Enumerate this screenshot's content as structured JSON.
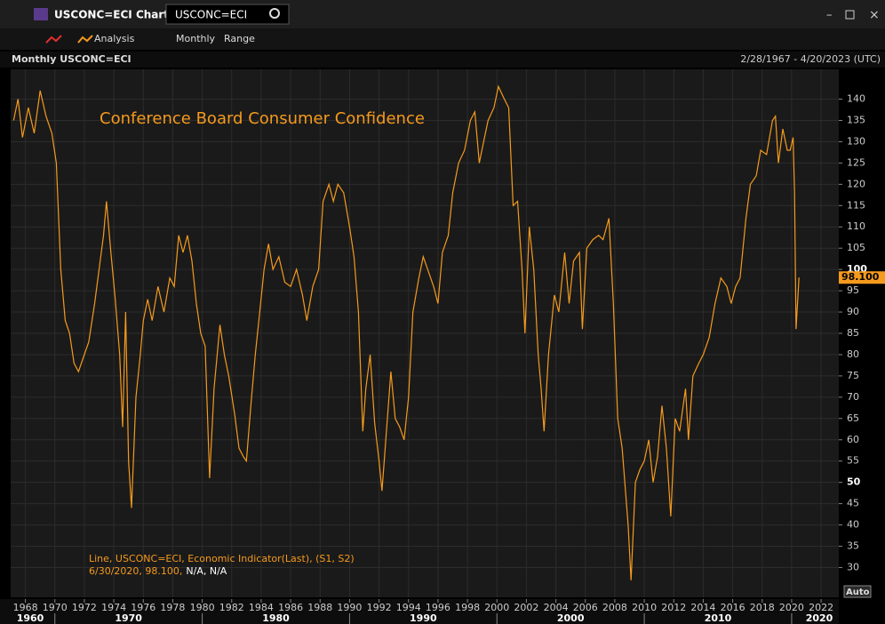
{
  "window": {
    "title": "USCONC=ECI Chart",
    "search": "USCONC=ECI"
  },
  "toolbar": {
    "analysis": "Analysis",
    "interval": "Monthly",
    "range": "Range"
  },
  "header": {
    "title": "Monthly USCONC=ECI",
    "date_range": "2/28/1967 - 4/20/2023 (UTC)"
  },
  "axis_button": "Auto",
  "legend": {
    "line1": "Line, USCONC=ECI, Economic Indicator(Last), (S1, S2)",
    "line2_date_value": "6/30/2020, 98.100,",
    "line2_rest": "N/A, N/A"
  },
  "chart_data": {
    "type": "line",
    "title": "Conference Board Consumer Confidence",
    "x": [
      1967.2,
      1967.5,
      1967.8,
      1968.2,
      1968.6,
      1969.0,
      1969.4,
      1969.8,
      1970.1,
      1970.4,
      1970.7,
      1971.0,
      1971.3,
      1971.6,
      1972.0,
      1972.3,
      1972.7,
      1973.0,
      1973.3,
      1973.5,
      1973.8,
      1974.1,
      1974.4,
      1974.6,
      1974.8,
      1975.0,
      1975.2,
      1975.5,
      1975.8,
      1976.0,
      1976.3,
      1976.6,
      1977.0,
      1977.4,
      1977.8,
      1978.1,
      1978.4,
      1978.7,
      1979.0,
      1979.3,
      1979.6,
      1979.9,
      1980.2,
      1980.5,
      1980.8,
      1981.2,
      1981.5,
      1981.8,
      1982.2,
      1982.5,
      1982.8,
      1983.0,
      1983.3,
      1983.6,
      1983.9,
      1984.2,
      1984.5,
      1984.8,
      1985.2,
      1985.6,
      1986.0,
      1986.4,
      1986.8,
      1987.1,
      1987.5,
      1987.9,
      1988.2,
      1988.6,
      1988.9,
      1989.2,
      1989.6,
      1990.0,
      1990.3,
      1990.6,
      1990.9,
      1991.1,
      1991.4,
      1991.7,
      1992.0,
      1992.2,
      1992.5,
      1992.8,
      1993.1,
      1993.4,
      1993.7,
      1994.0,
      1994.3,
      1994.7,
      1995.0,
      1995.3,
      1995.7,
      1996.0,
      1996.3,
      1996.7,
      1997.0,
      1997.4,
      1997.8,
      1998.2,
      1998.5,
      1998.8,
      1999.1,
      1999.4,
      1999.8,
      2000.1,
      2000.5,
      2000.8,
      2001.1,
      2001.4,
      2001.7,
      2001.9,
      2002.2,
      2002.5,
      2002.8,
      2003.0,
      2003.2,
      2003.5,
      2003.9,
      2004.2,
      2004.6,
      2004.9,
      2005.2,
      2005.6,
      2005.8,
      2006.1,
      2006.5,
      2006.9,
      2007.2,
      2007.6,
      2007.9,
      2008.2,
      2008.5,
      2008.9,
      2009.1,
      2009.4,
      2009.7,
      2010.0,
      2010.3,
      2010.6,
      2010.9,
      2011.2,
      2011.5,
      2011.8,
      2012.1,
      2012.4,
      2012.8,
      2013.0,
      2013.3,
      2013.7,
      2014.0,
      2014.4,
      2014.8,
      2015.2,
      2015.6,
      2015.9,
      2016.2,
      2016.5,
      2016.9,
      2017.2,
      2017.6,
      2017.9,
      2018.3,
      2018.7,
      2018.9,
      2019.1,
      2019.4,
      2019.7,
      2019.9,
      2020.1,
      2020.2,
      2020.3,
      2020.5
    ],
    "series": [
      {
        "name": "USCONC=ECI",
        "color": "#f59a1d",
        "values": [
          135,
          140,
          131,
          138,
          132,
          142,
          136,
          132,
          125,
          100,
          88,
          85,
          78,
          76,
          80,
          83,
          92,
          100,
          108,
          116,
          104,
          93,
          80,
          63,
          90,
          55,
          44,
          70,
          80,
          88,
          93,
          88,
          96,
          90,
          98,
          96,
          108,
          104,
          108,
          102,
          92,
          85,
          82,
          51,
          72,
          87,
          80,
          75,
          66,
          58,
          56,
          55,
          68,
          80,
          90,
          100,
          106,
          100,
          103,
          97,
          96,
          100,
          94,
          88,
          96,
          100,
          116,
          120,
          116,
          120,
          118,
          110,
          103,
          90,
          62,
          72,
          80,
          64,
          55,
          48,
          62,
          76,
          65,
          63,
          60,
          70,
          90,
          98,
          103,
          100,
          96,
          92,
          104,
          108,
          118,
          125,
          128,
          135,
          137,
          125,
          130,
          135,
          138,
          143,
          140,
          138,
          115,
          116,
          100,
          85,
          110,
          100,
          80,
          72,
          62,
          80,
          94,
          90,
          104,
          92,
          102,
          104,
          86,
          105,
          107,
          108,
          107,
          112,
          92,
          65,
          58,
          40,
          27,
          50,
          53,
          55,
          60,
          50,
          56,
          68,
          58,
          42,
          65,
          62,
          72,
          60,
          75,
          78,
          80,
          84,
          92,
          98,
          96,
          92,
          96,
          98,
          112,
          120,
          122,
          128,
          127,
          135,
          136,
          125,
          133,
          128,
          128,
          131,
          118,
          86,
          98.1
        ]
      }
    ],
    "last_value": {
      "value": 98.1,
      "label": "98.100"
    },
    "xlim": [
      1967,
      2023.2
    ],
    "ylim": [
      23,
      147
    ],
    "xticks": [
      1968,
      1970,
      1972,
      1974,
      1976,
      1978,
      1980,
      1982,
      1984,
      1986,
      1988,
      1990,
      1992,
      1994,
      1996,
      1998,
      2000,
      2002,
      2004,
      2006,
      2008,
      2010,
      2012,
      2014,
      2016,
      2018,
      2020,
      2022
    ],
    "decade_ticks": [
      1960,
      1970,
      1980,
      1990,
      2000,
      2010,
      2020
    ],
    "yticks": [
      30,
      35,
      40,
      45,
      50,
      55,
      60,
      65,
      70,
      75,
      80,
      85,
      90,
      95,
      100,
      105,
      110,
      115,
      120,
      125,
      130,
      135,
      140
    ],
    "grid": true
  }
}
